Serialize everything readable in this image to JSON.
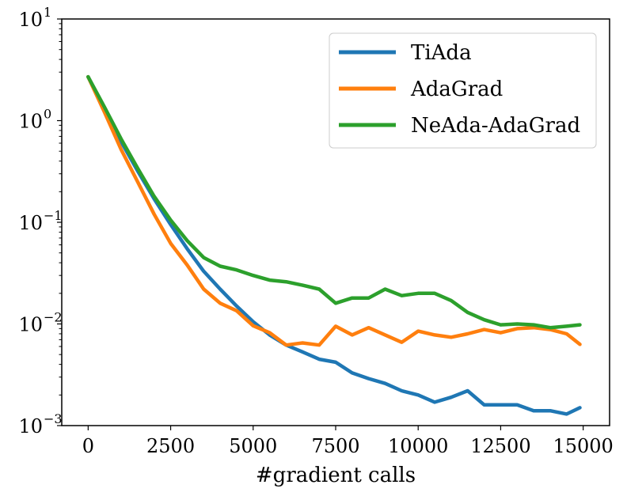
{
  "chart_data": {
    "type": "line",
    "title": "",
    "xlabel": "#gradient calls",
    "ylabel": "",
    "xlim": [
      -800,
      15800
    ],
    "xticks": [
      0,
      2500,
      5000,
      7500,
      10000,
      12500,
      15000
    ],
    "xtick_labels": [
      "0",
      "2500",
      "5000",
      "7500",
      "10000",
      "12500",
      "15000"
    ],
    "yscale": "log",
    "ylim": [
      0.001,
      10
    ],
    "yticks": [
      {
        "value": 10,
        "base": "10",
        "exp": "1"
      },
      {
        "value": 1,
        "base": "10",
        "exp": "0"
      },
      {
        "value": 0.1,
        "base": "10",
        "exp": "−1"
      },
      {
        "value": 0.01,
        "base": "10",
        "exp": "−2"
      },
      {
        "value": 0.001,
        "base": "10",
        "exp": "−3"
      }
    ],
    "grid": false,
    "legend_position": "top-right",
    "x": [
      0,
      500,
      1000,
      1500,
      2000,
      2500,
      3000,
      3500,
      4000,
      4500,
      5000,
      5500,
      6000,
      6500,
      7000,
      7500,
      8000,
      8500,
      9000,
      9500,
      10000,
      10500,
      11000,
      11500,
      12000,
      12500,
      13000,
      13500,
      14000,
      14500,
      14900
    ],
    "series": [
      {
        "name": "TiAda",
        "color": "#1f77b4",
        "values": [
          2.7,
          1.3,
          0.62,
          0.32,
          0.17,
          0.095,
          0.055,
          0.033,
          0.022,
          0.015,
          0.0105,
          0.0078,
          0.0062,
          0.0053,
          0.0045,
          0.0042,
          0.0033,
          0.0029,
          0.0026,
          0.0022,
          0.002,
          0.0017,
          0.0019,
          0.0022,
          0.0016,
          0.0016,
          0.0016,
          0.0014,
          0.0014,
          0.0013,
          0.0015
        ]
      },
      {
        "name": "AdaGrad",
        "color": "#ff7f0e",
        "values": [
          2.7,
          1.2,
          0.52,
          0.25,
          0.12,
          0.062,
          0.038,
          0.022,
          0.016,
          0.0135,
          0.0096,
          0.0082,
          0.0062,
          0.0065,
          0.0062,
          0.0095,
          0.0078,
          0.0092,
          0.0078,
          0.0066,
          0.0085,
          0.0078,
          0.0074,
          0.008,
          0.0088,
          0.0082,
          0.009,
          0.0092,
          0.0088,
          0.008,
          0.0063
        ]
      },
      {
        "name": "NeAda-AdaGrad",
        "color": "#2ca02c",
        "values": [
          2.7,
          1.35,
          0.66,
          0.34,
          0.18,
          0.105,
          0.066,
          0.045,
          0.037,
          0.034,
          0.03,
          0.027,
          0.026,
          0.024,
          0.022,
          0.016,
          0.018,
          0.018,
          0.022,
          0.019,
          0.02,
          0.02,
          0.017,
          0.013,
          0.011,
          0.0098,
          0.01,
          0.0098,
          0.0092,
          0.0095,
          0.0098
        ]
      }
    ]
  }
}
